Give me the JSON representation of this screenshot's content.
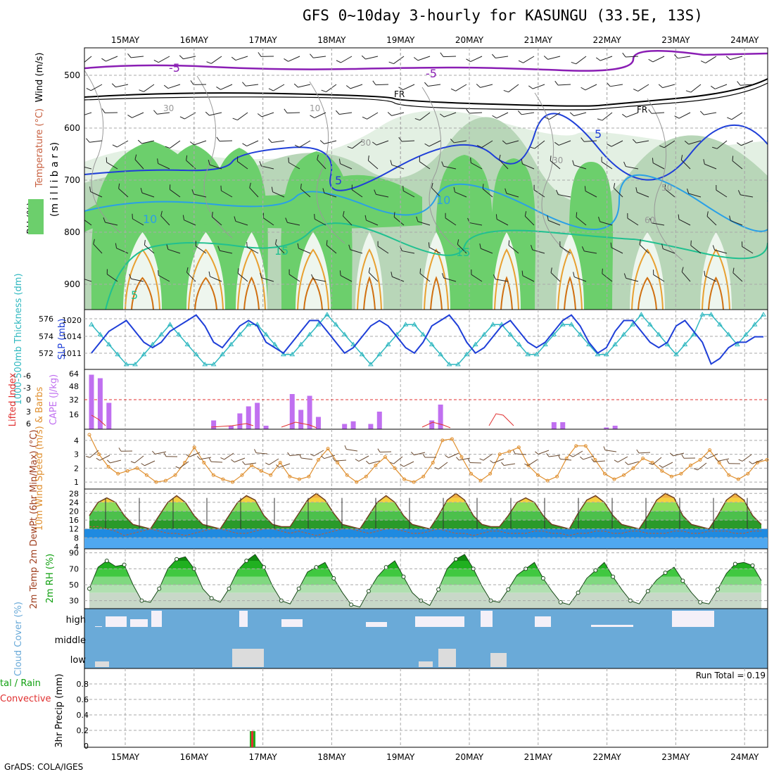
{
  "title": "GFS 0~10day 3-hourly for KASUNGU (33.5E, 13S)",
  "credit": "GrADS: COLA/IGES",
  "dates": [
    "15MAY",
    "16MAY",
    "17MAY",
    "18MAY",
    "19MAY",
    "20MAY",
    "21MAY",
    "22MAY",
    "23MAY",
    "24MAY"
  ],
  "colors": {
    "rh_light": "#e3f0e3",
    "rh_mid": "#b8d6b8",
    "rh_green": "#6ccf6c",
    "rh_bright": "#00e400",
    "purple": "#8a1eb4",
    "blue": "#1f3fd8",
    "skyblue": "#2aa0e6",
    "teal": "#20c090",
    "orange": "#e8a030",
    "darkorange": "#d07010",
    "cyan": "#30b8c0",
    "slp": "#1f3fd8",
    "cape": "#c070f0",
    "li": "#e03030",
    "wind_orange": "#e09030",
    "cloud_blue": "#6aaad8"
  },
  "panels": {
    "upper": {
      "ylabel": "(m i l l i b a r s)",
      "legend_parts": [
        "Wind (m/s)",
        "Temperature (°C)",
        "RH (%)"
      ],
      "yticks": [
        "500",
        "600",
        "700",
        "800",
        "900"
      ],
      "contour_labels": [
        "-5",
        "-5",
        "FR",
        "FR",
        "5",
        "5",
        "10",
        "10",
        "15",
        "15",
        "5",
        "30",
        "10",
        "30",
        "30",
        "50",
        "60"
      ]
    },
    "thickness": {
      "left_label": "1000-500mb Thickness (dm)",
      "right_label": "SLP (mb)",
      "left_ticks": [
        "576",
        "574",
        "572"
      ],
      "right_ticks": [
        "1020",
        "1014",
        "1011"
      ]
    },
    "cape": {
      "left_label": "Lifted Index",
      "right_label": "CAPE (J/kg)",
      "left_ticks": [
        "-6",
        "-3",
        "0",
        "3",
        "6"
      ],
      "right_ticks": [
        "64",
        "48",
        "32",
        "16"
      ]
    },
    "wind10": {
      "label": "10m Wind Speed (m/s) & Barbs",
      "yticks": [
        "4",
        "3",
        "2",
        "1"
      ]
    },
    "temp": {
      "label": "2m Temp 2m DewPt (6hr Min/Max) (°C)",
      "yticks": [
        "28",
        "24",
        "20",
        "16",
        "12",
        "8",
        "4"
      ]
    },
    "rh2": {
      "label": "2m RH (%)",
      "yticks": [
        "90",
        "70",
        "50",
        "30"
      ]
    },
    "cloud": {
      "label": "Cloud Cover (%)",
      "levels": [
        "high",
        "middle",
        "low"
      ]
    },
    "precip": {
      "label": "3hr Precip (mm)",
      "legend_total": "tal / Rain",
      "legend_conv": "Convective",
      "yticks": [
        "0.8",
        "0.6",
        "0.4",
        "0.2",
        "0"
      ],
      "run_total": "Run Total = 0.19"
    }
  },
  "chart_data": [
    {
      "type": "line",
      "name": "slp",
      "x": "3-hourly 15MAY-24MAY",
      "values": [
        1014,
        1016,
        1018,
        1019,
        1020,
        1018,
        1016,
        1015,
        1016,
        1018,
        1019,
        1020,
        1021,
        1019,
        1016,
        1015,
        1017,
        1019,
        1020,
        1019,
        1016,
        1015,
        1014,
        1016,
        1018,
        1020,
        1020,
        1018,
        1016,
        1014,
        1015,
        1017,
        1019,
        1020,
        1019,
        1017,
        1015,
        1014,
        1016,
        1019,
        1020,
        1021,
        1019,
        1016,
        1014,
        1015,
        1017,
        1019,
        1020,
        1018,
        1016,
        1015,
        1016,
        1018,
        1020,
        1021,
        1019,
        1016,
        1014,
        1015,
        1018,
        1020,
        1020,
        1018,
        1016,
        1015,
        1016,
        1019,
        1020,
        1018,
        1016,
        1012,
        1013,
        1015,
        1016,
        1016,
        1017,
        1017
      ]
    },
    {
      "type": "line",
      "name": "thickness",
      "values": [
        575,
        574,
        573,
        572,
        571,
        571,
        572,
        573,
        574,
        575,
        574,
        573,
        572,
        571,
        571,
        572,
        573,
        574,
        575,
        575,
        574,
        573,
        572,
        572,
        573,
        574,
        575,
        576,
        575,
        574,
        573,
        572,
        571,
        572,
        573,
        574,
        575,
        575,
        574,
        573,
        572,
        571,
        571,
        572,
        573,
        574,
        575,
        575,
        574,
        573,
        572,
        572,
        573,
        574,
        575,
        575,
        574,
        573,
        572,
        572,
        573,
        574,
        575,
        576,
        575,
        574,
        573,
        572,
        573,
        574,
        576,
        576,
        575,
        574,
        573,
        574,
        575,
        576
      ]
    },
    {
      "type": "bar",
      "name": "cape",
      "indices": [
        0,
        1,
        2,
        14,
        16,
        17,
        18,
        19,
        20,
        23,
        24,
        25,
        26,
        29,
        30,
        32,
        33,
        39,
        40,
        53,
        54,
        59,
        60
      ],
      "values": [
        62,
        58,
        30,
        10,
        4,
        18,
        26,
        30,
        4,
        40,
        22,
        38,
        14,
        6,
        9,
        6,
        20,
        10,
        28,
        8,
        8,
        2,
        4
      ]
    },
    {
      "type": "line",
      "name": "wind10",
      "values": [
        4.4,
        3.0,
        2.1,
        1.6,
        1.8,
        2.0,
        1.5,
        1.0,
        1.1,
        1.5,
        2.4,
        3.5,
        2.4,
        1.5,
        1.2,
        1.0,
        1.5,
        2.2,
        1.8,
        1.5,
        2.4,
        1.4,
        1.2,
        1.4,
        2.6,
        3.4,
        2.4,
        1.5,
        1.0,
        1.4,
        2.2,
        2.8,
        2.0,
        1.2,
        1.0,
        1.4,
        2.4,
        4.0,
        4.1,
        2.8,
        1.6,
        1.1,
        1.6,
        3.0,
        3.2,
        3.5,
        2.2,
        1.5,
        1.1,
        1.4,
        2.7,
        3.6,
        3.6,
        2.6,
        1.6,
        1.2,
        1.5,
        2.0,
        2.7,
        2.4,
        1.8,
        1.4,
        1.6,
        2.2,
        2.6,
        3.3,
        2.4,
        1.5,
        1.2,
        1.6,
        2.4,
        2.6
      ]
    },
    {
      "type": "area",
      "name": "temp2m",
      "values": [
        18,
        24,
        26,
        24,
        18,
        14,
        13,
        12,
        18,
        24,
        27,
        24,
        18,
        14,
        13,
        12,
        18,
        24,
        27,
        25,
        18,
        14,
        13,
        13,
        19,
        25,
        28,
        25,
        19,
        14,
        13,
        12,
        18,
        24,
        27,
        24,
        18,
        14,
        13,
        12,
        18,
        25,
        28,
        25,
        18,
        14,
        13,
        13,
        18,
        24,
        26,
        24,
        18,
        14,
        13,
        12,
        19,
        25,
        27,
        24,
        18,
        14,
        13,
        12,
        18,
        25,
        28,
        26,
        18,
        14,
        13,
        12,
        18,
        25,
        28,
        25,
        18,
        14
      ]
    },
    {
      "type": "line",
      "name": "dewpt2m",
      "values": [
        13,
        13,
        12,
        11,
        9,
        10,
        11,
        12,
        11,
        10,
        10,
        9,
        10,
        11,
        12,
        12,
        11,
        10,
        10,
        11,
        12,
        12,
        11,
        10,
        11,
        10,
        9,
        10,
        11,
        12,
        12,
        11,
        10,
        11,
        12,
        12,
        11,
        10,
        10,
        11,
        12,
        11,
        10,
        10,
        9,
        10,
        11,
        11,
        10,
        10,
        10,
        11,
        11,
        10,
        10,
        9,
        10,
        10,
        11,
        11,
        10,
        10,
        11,
        11,
        10,
        10,
        10,
        11,
        11,
        10,
        10,
        11,
        11,
        11,
        10,
        10,
        11,
        11
      ]
    },
    {
      "type": "area",
      "name": "rh2m",
      "values": [
        45,
        72,
        80,
        73,
        75,
        50,
        30,
        28,
        45,
        70,
        82,
        85,
        70,
        45,
        33,
        28,
        45,
        68,
        80,
        88,
        72,
        48,
        30,
        26,
        45,
        66,
        72,
        78,
        58,
        40,
        25,
        22,
        42,
        60,
        72,
        80,
        60,
        40,
        30,
        24,
        44,
        70,
        82,
        88,
        70,
        48,
        30,
        28,
        44,
        62,
        70,
        78,
        58,
        42,
        28,
        25,
        40,
        58,
        68,
        78,
        60,
        44,
        30,
        26,
        42,
        56,
        65,
        72,
        55,
        40,
        28,
        26,
        44,
        64,
        76,
        78,
        74,
        55
      ]
    },
    {
      "type": "bar",
      "name": "precip",
      "indices": [
        23
      ],
      "values": [
        0.19
      ]
    }
  ]
}
